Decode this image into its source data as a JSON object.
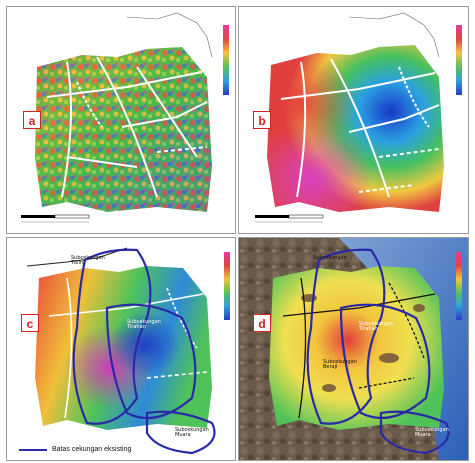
{
  "panels": [
    {
      "letter": "a"
    },
    {
      "letter": "b"
    },
    {
      "letter": "c",
      "labels": {
        "tibini": "Subcekungan\nTibini",
        "tirahan": "Subcekungan\nTirahan",
        "muara": "Subcekungan\nMuara"
      }
    },
    {
      "letter": "d",
      "labels": {
        "tibini": "Subcekungan",
        "tirahan": "Subcekungan\nTirahan",
        "beraji": "Subcekungan\nBeraji",
        "muara": "Subcekungan\nMuara"
      }
    }
  ],
  "legend": {
    "label": "Batas cekungan eksisting",
    "color": "#2a2aa8"
  },
  "colors": {
    "fault_line": "#ffffff",
    "basin_boundary": "#2a2aa8",
    "letter_border": "#d32020"
  }
}
